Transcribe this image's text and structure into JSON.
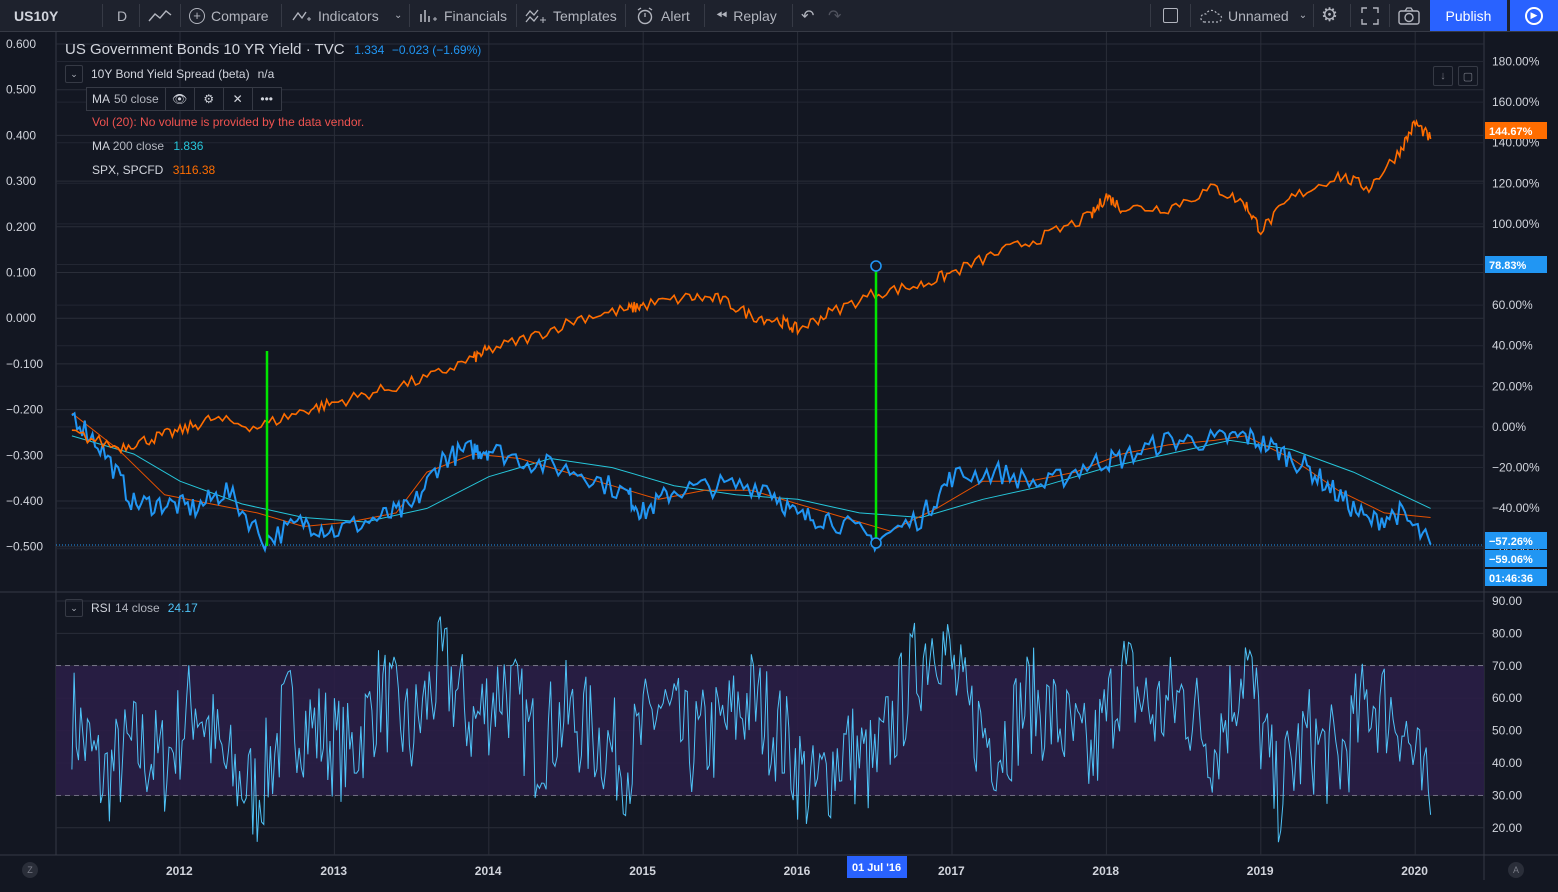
{
  "toolbar": {
    "symbol": "US10Y",
    "interval": "D",
    "compare": "Compare",
    "indicators": "Indicators",
    "financials": "Financials",
    "templates": "Templates",
    "alert": "Alert",
    "replay": "Replay",
    "layout_name": "Unnamed",
    "publish": "Publish"
  },
  "legend": {
    "title": "US Government Bonds 10 YR Yield · TVC",
    "last": "1.334",
    "change": "−0.023 (−1.69%)",
    "spread_name": "10Y Bond Yield Spread (beta)",
    "spread_value": "n/a",
    "ma50_name": "MA",
    "ma50_params": "50 close",
    "vol_error": "Vol (20): No volume is provided by the data vendor.",
    "ma200_name": "MA",
    "ma200_params": "200 close",
    "ma200_value": "1.836",
    "spx_name": "SPX, SPCFD",
    "spx_value": "3116.38",
    "rsi_name": "RSI",
    "rsi_params": "14 close",
    "rsi_value": "24.17"
  },
  "colors": {
    "bg": "#131722",
    "spread": "#2196f3",
    "spx": "#ff6d00",
    "ma50": "#e65100",
    "ma200": "#26c6da",
    "rsi": "#4fc3f7",
    "marker": "#00e600",
    "publish": "#2962ff"
  },
  "chart_data": {
    "type": "line",
    "left_axis": [
      "0.600",
      "0.500",
      "0.400",
      "0.300",
      "0.200",
      "0.100",
      "0.000",
      "−0.100",
      "−0.200",
      "−0.300",
      "−0.400",
      "−0.500"
    ],
    "right_axis": [
      "180.00%",
      "160.00%",
      "140.00%",
      "120.00%",
      "100.00%",
      "80.00%",
      "60.00%",
      "40.00%",
      "20.00%",
      "0.00%",
      "−20.00%",
      "−40.00%",
      "−60.00%"
    ],
    "right_badges": {
      "spx": "144.67%",
      "level": "78.83%",
      "spread_a": "−57.26%",
      "spread_b": "−59.06%",
      "countdown": "01:46:36"
    },
    "rsi_axis": [
      "90.00",
      "80.00",
      "70.00",
      "60.00",
      "50.00",
      "40.00",
      "30.00",
      "20.00"
    ],
    "rsi_bands": [
      30,
      70
    ],
    "x_labels": [
      "2012",
      "2013",
      "2014",
      "2015",
      "2016",
      "2017",
      "2018",
      "2019",
      "2020"
    ],
    "x_highlight": "01 Jul '16",
    "spread_series": {
      "name": "10Y Bond Yield Spread (beta)",
      "x": [
        2011.3,
        2011.5,
        2011.7,
        2011.9,
        2012.1,
        2012.3,
        2012.55,
        2012.8,
        2013.0,
        2013.3,
        2013.5,
        2013.7,
        2013.9,
        2014.0,
        2014.3,
        2014.6,
        2014.9,
        2015.0,
        2015.2,
        2015.5,
        2015.8,
        2016.0,
        2016.2,
        2016.5,
        2016.8,
        2017.0,
        2017.3,
        2017.6,
        2017.9,
        2018.1,
        2018.4,
        2018.7,
        2018.9,
        2019.1,
        2019.3,
        2019.5,
        2019.7,
        2019.9,
        2020.1
      ],
      "y": [
        -0.21,
        -0.29,
        -0.41,
        -0.41,
        -0.42,
        -0.38,
        -0.49,
        -0.45,
        -0.47,
        -0.44,
        -0.42,
        -0.31,
        -0.29,
        -0.29,
        -0.32,
        -0.34,
        -0.39,
        -0.43,
        -0.38,
        -0.37,
        -0.37,
        -0.44,
        -0.44,
        -0.49,
        -0.44,
        -0.35,
        -0.34,
        -0.37,
        -0.32,
        -0.31,
        -0.27,
        -0.27,
        -0.26,
        -0.29,
        -0.33,
        -0.39,
        -0.45,
        -0.43,
        -0.5
      ]
    },
    "spx_series": {
      "name": "SPX, SPCFD",
      "x": [
        2011.3,
        2011.6,
        2011.8,
        2012.0,
        2012.2,
        2012.5,
        2012.8,
        2013.0,
        2013.3,
        2013.6,
        2013.9,
        2014.0,
        2014.3,
        2014.6,
        2014.9,
        2015.0,
        2015.3,
        2015.5,
        2015.7,
        2015.9,
        2016.0,
        2016.2,
        2016.5,
        2016.8,
        2017.0,
        2017.3,
        2017.6,
        2017.9,
        2018.0,
        2018.1,
        2018.4,
        2018.7,
        2018.9,
        2019.0,
        2019.2,
        2019.5,
        2019.7,
        2019.9,
        2020.0,
        2020.1
      ],
      "y": [
        -3,
        -10,
        -6,
        -2,
        4,
        0,
        8,
        12,
        18,
        24,
        34,
        38,
        45,
        54,
        58,
        60,
        64,
        63,
        55,
        52,
        48,
        56,
        66,
        70,
        76,
        86,
        94,
        104,
        114,
        108,
        108,
        118,
        110,
        97,
        113,
        124,
        118,
        136,
        150,
        142
      ]
    },
    "ma50_series": {
      "name": "MA 50 close",
      "x": [
        2011.3,
        2011.6,
        2011.9,
        2012.2,
        2012.5,
        2012.8,
        2013.1,
        2013.4,
        2013.6,
        2013.9,
        2014.2,
        2014.5,
        2014.8,
        2015.1,
        2015.4,
        2015.7,
        2016.0,
        2016.3,
        2016.6,
        2016.9,
        2017.2,
        2017.5,
        2017.8,
        2018.1,
        2018.4,
        2018.7,
        2018.9,
        2019.2,
        2019.5,
        2019.8,
        2020.1
      ],
      "y": [
        -0.21,
        -0.29,
        -0.39,
        -0.41,
        -0.43,
        -0.46,
        -0.45,
        -0.43,
        -0.34,
        -0.3,
        -0.31,
        -0.34,
        -0.37,
        -0.4,
        -0.38,
        -0.38,
        -0.41,
        -0.44,
        -0.47,
        -0.42,
        -0.36,
        -0.36,
        -0.34,
        -0.3,
        -0.28,
        -0.27,
        -0.26,
        -0.31,
        -0.38,
        -0.43,
        -0.44
      ]
    },
    "ma200_series": {
      "name": "MA 200 close",
      "x": [
        2011.3,
        2011.7,
        2012.0,
        2012.4,
        2012.8,
        2013.2,
        2013.6,
        2014.0,
        2014.4,
        2014.8,
        2015.2,
        2015.6,
        2016.0,
        2016.4,
        2016.8,
        2017.2,
        2017.6,
        2018.0,
        2018.4,
        2018.8,
        2019.2,
        2019.6,
        2020.1
      ],
      "y": [
        -0.26,
        -0.3,
        -0.36,
        -0.41,
        -0.44,
        -0.45,
        -0.42,
        -0.35,
        -0.31,
        -0.33,
        -0.37,
        -0.39,
        -0.4,
        -0.43,
        -0.44,
        -0.4,
        -0.37,
        -0.33,
        -0.3,
        -0.27,
        -0.29,
        -0.34,
        -0.42
      ]
    },
    "rsi_series": {
      "name": "RSI 14 close",
      "x": [
        2011.3,
        2011.5,
        2011.7,
        2011.9,
        2012.1,
        2012.3,
        2012.5,
        2012.7,
        2012.9,
        2013.1,
        2013.3,
        2013.5,
        2013.7,
        2013.9,
        2014.1,
        2014.3,
        2014.5,
        2014.7,
        2014.9,
        2015.1,
        2015.3,
        2015.5,
        2015.7,
        2015.9,
        2016.1,
        2016.3,
        2016.5,
        2016.7,
        2016.9,
        2017.1,
        2017.3,
        2017.5,
        2017.7,
        2017.9,
        2018.1,
        2018.3,
        2018.5,
        2018.7,
        2018.9,
        2019.1,
        2019.3,
        2019.5,
        2019.7,
        2019.9,
        2020.1
      ],
      "y": [
        55,
        35,
        45,
        40,
        60,
        38,
        30,
        55,
        50,
        42,
        62,
        48,
        70,
        52,
        65,
        45,
        55,
        48,
        40,
        58,
        45,
        50,
        60,
        48,
        30,
        45,
        38,
        62,
        82,
        55,
        45,
        60,
        52,
        40,
        68,
        55,
        60,
        45,
        72,
        30,
        48,
        40,
        60,
        55,
        24
      ]
    }
  }
}
